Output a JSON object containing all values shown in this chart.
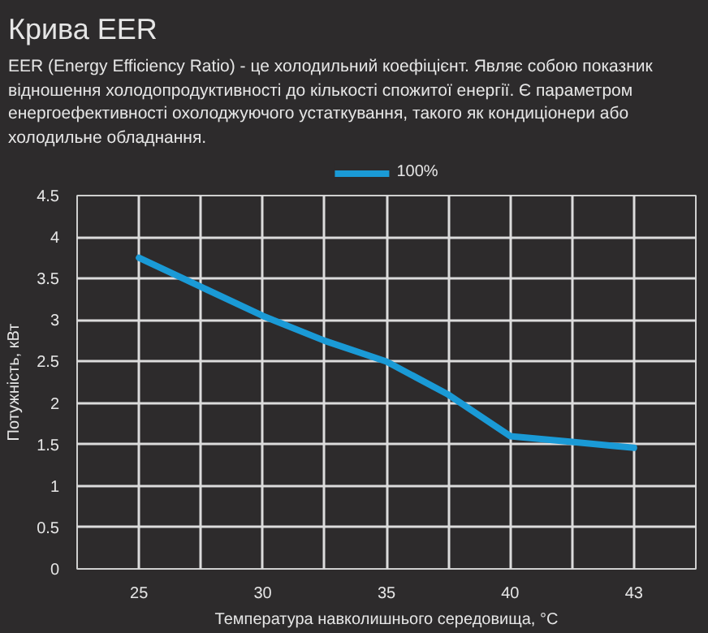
{
  "chart_data": {
    "type": "line",
    "title": "Крива EER",
    "subtitle": "EER (Energy Efficiency Ratio) - це холодильний коефіцієнт. Являє собою показник відношення холодопродуктивності до кількості спожитої енергії. Є параметром енергоефективності охолоджуючого устаткування, такого як кондиціонери або холодильне обладнання.",
    "xlabel": "Температура навколишнього середовища, °C",
    "ylabel": "Потужність, кВт",
    "categories": [
      "25",
      null,
      "30",
      null,
      "35",
      null,
      "40",
      null,
      "43"
    ],
    "series": [
      {
        "name": "100%",
        "color": "#1a9ad6",
        "values": [
          3.75,
          3.4,
          3.05,
          2.75,
          2.5,
          2.1,
          1.6,
          1.53,
          1.46
        ]
      }
    ],
    "ylim": [
      0,
      4.5
    ],
    "yticks": [
      0,
      0.5,
      1,
      1.5,
      2,
      2.5,
      3,
      3.5,
      4,
      4.5
    ],
    "grid": true,
    "legend": "top",
    "marker": "none",
    "line_style": "solid"
  }
}
